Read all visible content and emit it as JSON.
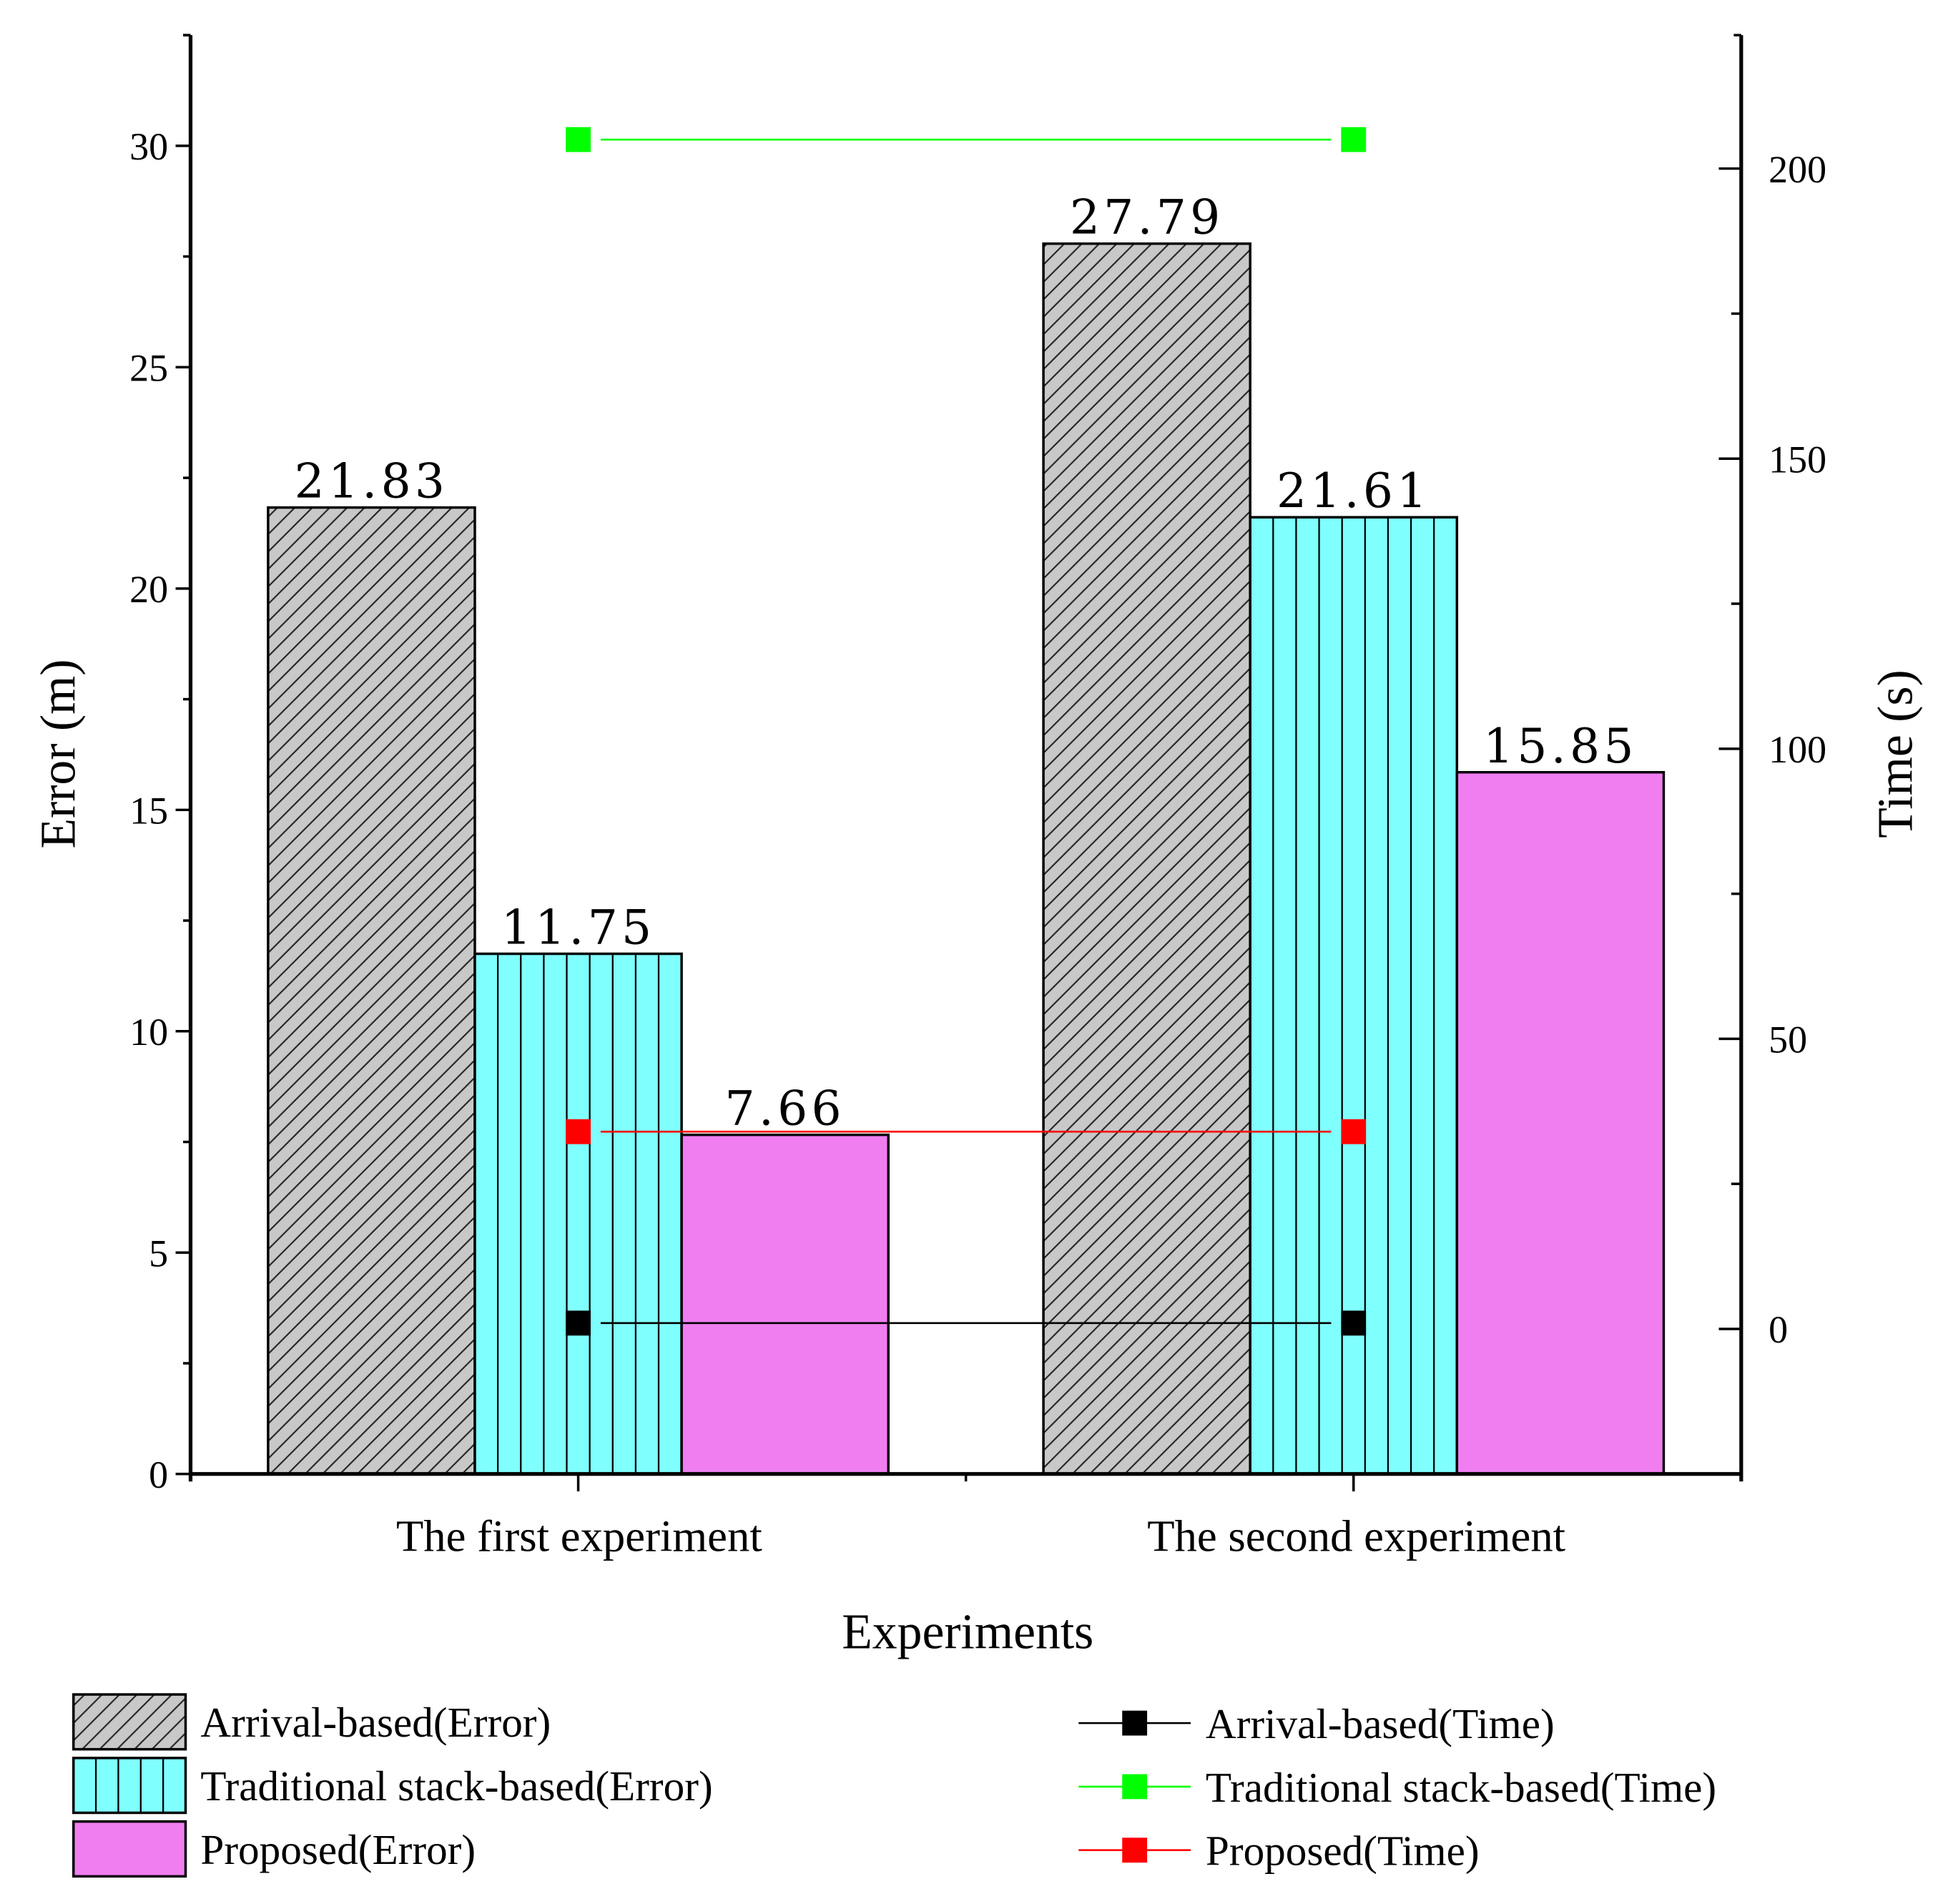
{
  "chart_data": {
    "type": "bar",
    "title": "",
    "xlabel": "Experiments",
    "ylabel": "Error (m)",
    "y2label": "Time (s)",
    "categories": [
      "The first experiment",
      "The second experiment"
    ],
    "ylim": [
      0,
      32.5
    ],
    "y2lim": [
      -25,
      223
    ],
    "yticks": [
      0,
      5,
      10,
      15,
      20,
      25,
      30
    ],
    "y2ticks": [
      0,
      50,
      100,
      150,
      200
    ],
    "grid": false,
    "legend_position": "bottom",
    "series": [
      {
        "name": "Arrival-based(Error)",
        "kind": "bar",
        "axis": "left",
        "values": [
          21.83,
          27.79
        ],
        "labels": [
          "21.83",
          "27.79"
        ],
        "color": "#c8c8c8",
        "pattern": "diagonal"
      },
      {
        "name": "Traditional stack-based(Error)",
        "kind": "bar",
        "axis": "left",
        "values": [
          11.75,
          21.61
        ],
        "labels": [
          "11.75",
          "21.61"
        ],
        "color": "#80ffff",
        "pattern": "vertical"
      },
      {
        "name": "Proposed(Error)",
        "kind": "bar",
        "axis": "left",
        "values": [
          7.66,
          15.85
        ],
        "labels": [
          "7.66",
          "15.85"
        ],
        "color": "#f07ef0",
        "pattern": "none"
      },
      {
        "name": "Arrival-based(Time)",
        "kind": "line",
        "axis": "right",
        "values": [
          1,
          1
        ],
        "color": "#000000"
      },
      {
        "name": "Traditional stack-based(Time)",
        "kind": "line",
        "axis": "right",
        "values": [
          205,
          205
        ],
        "color": "#00ff00"
      },
      {
        "name": "Proposed(Time)",
        "kind": "line",
        "axis": "right",
        "values": [
          34,
          34
        ],
        "color": "#ff0000"
      }
    ]
  }
}
